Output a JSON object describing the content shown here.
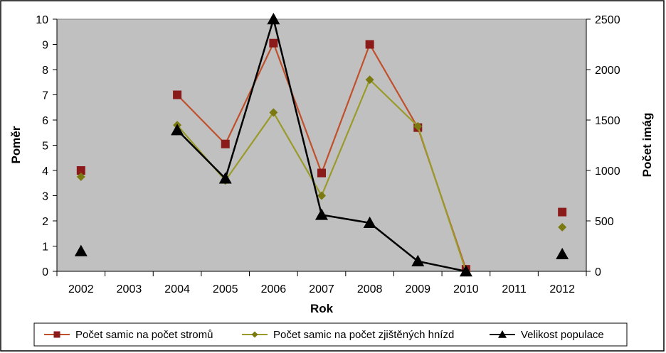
{
  "chart_data": {
    "type": "line",
    "categories": [
      "2002",
      "2003",
      "2004",
      "2005",
      "2006",
      "2007",
      "2008",
      "2009",
      "2010",
      "2011",
      "2012"
    ],
    "xlabel": "Rok",
    "ylabel": "Poměr",
    "y2label": "Počet imág",
    "ylim": [
      0,
      10
    ],
    "yticks": [
      "0",
      "1",
      "2",
      "3",
      "4",
      "5",
      "6",
      "7",
      "8",
      "9",
      "10"
    ],
    "y2lim": [
      0,
      2500
    ],
    "y2ticks": [
      "0",
      "500",
      "1000",
      "1500",
      "2000",
      "2500"
    ],
    "plot_background": "#C0C0C0",
    "legend_position": "bottom",
    "series": [
      {
        "name": "Počet samic na počet stromů",
        "axis": "left",
        "marker": "square",
        "color": "#8B1A1A",
        "line_color": "#C0502B",
        "values": [
          4.0,
          null,
          7.0,
          5.05,
          9.05,
          3.9,
          9.0,
          5.7,
          0.08,
          null,
          2.35
        ]
      },
      {
        "name": "Počet samic na počet zjištěných hnízd",
        "axis": "left",
        "marker": "diamond",
        "color": "#7A7A10",
        "line_color": "#9A9A2A",
        "values": [
          3.75,
          null,
          5.8,
          3.6,
          6.3,
          3.0,
          7.6,
          5.75,
          0.0,
          null,
          1.75
        ]
      },
      {
        "name": "Velikost populace",
        "axis": "right",
        "marker": "triangle",
        "color": "#000000",
        "line_color": "#000000",
        "values": [
          200,
          null,
          1400,
          920,
          2500,
          560,
          480,
          100,
          0,
          null,
          170
        ]
      }
    ]
  }
}
